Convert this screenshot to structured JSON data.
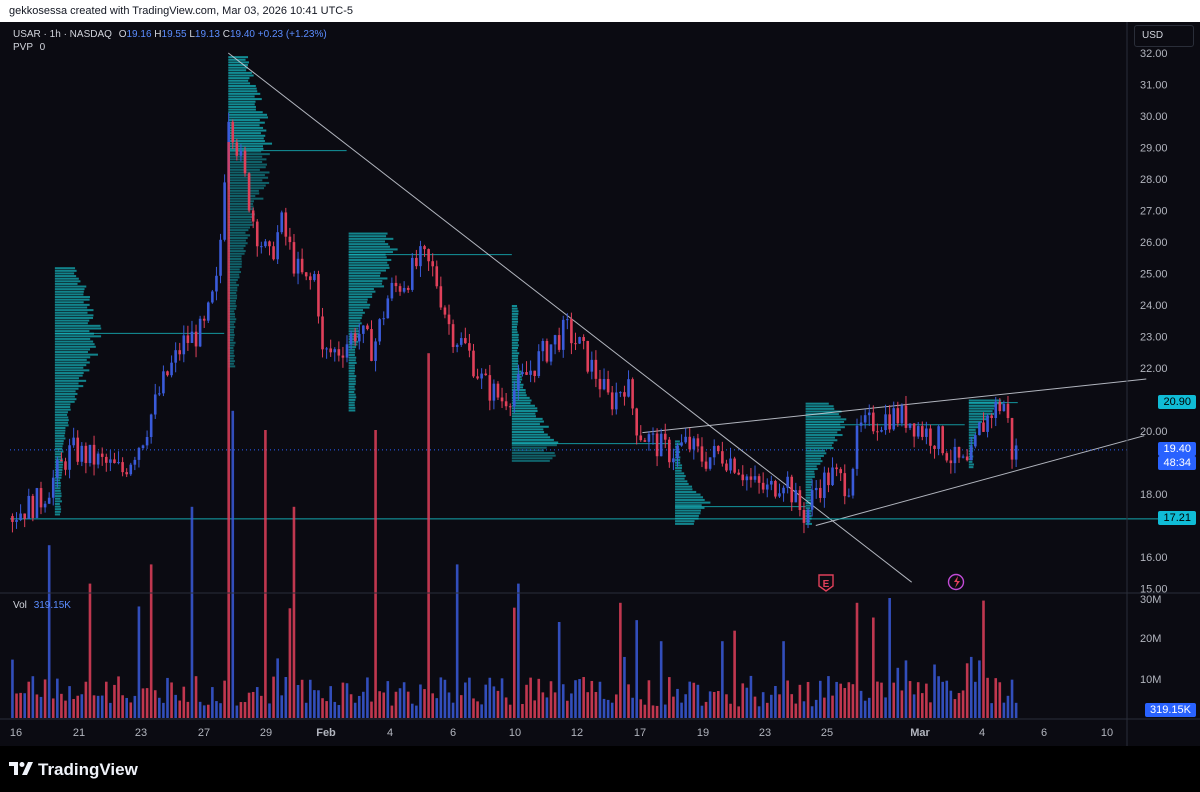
{
  "header": {
    "caption": "gekkosessa created with TradingView.com, Mar 03, 2026 10:41 UTC-5"
  },
  "legend": {
    "symbol": "USAR · 1h · NASDAQ",
    "o_label": "O",
    "o": "19.16",
    "h_label": "H",
    "h": "19.55",
    "l_label": "L",
    "l": "19.13",
    "c_label": "C",
    "c": "19.40",
    "change": "+0.23 (+1.23%)",
    "indicator": "PVP",
    "indicator_value": "0"
  },
  "volume_legend": {
    "label": "Vol",
    "value": "319.15K"
  },
  "price_scale": {
    "currency": "USD",
    "ticks": [
      "32.00",
      "31.00",
      "30.00",
      "29.00",
      "28.00",
      "27.00",
      "26.00",
      "25.00",
      "24.00",
      "23.00",
      "22.00",
      "20.00",
      "18.00",
      "16.00",
      "15.00"
    ],
    "tags": [
      {
        "text": "20.90",
        "value": 20.9,
        "color": "#10bcd6"
      },
      {
        "text": "19.40",
        "value": 19.4,
        "color": "#2962ff"
      },
      {
        "text": "48:34",
        "value": 18.95,
        "color": "#2962ff"
      },
      {
        "text": "17.21",
        "value": 17.21,
        "color": "#10bcd6"
      }
    ]
  },
  "volume_scale": {
    "ticks": [
      "30M",
      "20M",
      "10M"
    ],
    "current_tag": "319.15K"
  },
  "time_axis": [
    "16",
    "21",
    "23",
    "27",
    "29",
    "Feb",
    "4",
    "6",
    "10",
    "12",
    "17",
    "19",
    "23",
    "25",
    "Mar",
    "4",
    "6",
    "10"
  ],
  "markers": {
    "earnings_label": "E"
  },
  "brand": {
    "name": "TradingView"
  },
  "colors": {
    "up": "#3a5bd9",
    "down": "#e0405a",
    "profile": "#16b8c0",
    "background": "#0b0b12"
  },
  "chart_data": {
    "type": "candlestick",
    "title": "USAR · 1h · NASDAQ",
    "xlabel": "",
    "ylabel": "",
    "ylim": [
      15,
      32.5
    ],
    "volume_ylim": [
      0,
      30000000
    ],
    "grid": false,
    "x_ticks": [
      "16",
      "21",
      "23",
      "27",
      "29",
      "Feb",
      "4",
      "6",
      "10",
      "12",
      "17",
      "19",
      "23",
      "25",
      "Mar",
      "4",
      "6",
      "10"
    ],
    "y_ticks": [
      15,
      16,
      18,
      20,
      22,
      23,
      24,
      25,
      26,
      27,
      28,
      29,
      30,
      31,
      32
    ],
    "last_price": 19.4,
    "price_levels": [
      17.21,
      20.9
    ],
    "close_path": [
      {
        "x": 0.0,
        "y": 17.3
      },
      {
        "x": 1.5,
        "y": 17.8
      },
      {
        "x": 3.0,
        "y": 19.4
      },
      {
        "x": 4.5,
        "y": 19.0
      },
      {
        "x": 5.5,
        "y": 18.7
      },
      {
        "x": 6.5,
        "y": 19.8
      },
      {
        "x": 7.5,
        "y": 21.5
      },
      {
        "x": 8.5,
        "y": 22.8
      },
      {
        "x": 9.5,
        "y": 23.2
      },
      {
        "x": 10.2,
        "y": 24.8
      },
      {
        "x": 10.7,
        "y": 30.2
      },
      {
        "x": 11.3,
        "y": 28.6
      },
      {
        "x": 12.0,
        "y": 26.5
      },
      {
        "x": 12.7,
        "y": 25.4
      },
      {
        "x": 13.3,
        "y": 26.6
      },
      {
        "x": 14.0,
        "y": 25.2
      },
      {
        "x": 14.6,
        "y": 24.6
      },
      {
        "x": 15.0,
        "y": 25.0
      },
      {
        "x": 15.3,
        "y": 22.4
      },
      {
        "x": 16.2,
        "y": 22.6
      },
      {
        "x": 17.0,
        "y": 23.2
      },
      {
        "x": 17.8,
        "y": 22.6
      },
      {
        "x": 18.6,
        "y": 24.4
      },
      {
        "x": 19.4,
        "y": 24.8
      },
      {
        "x": 20.2,
        "y": 25.5
      },
      {
        "x": 20.8,
        "y": 25.0
      },
      {
        "x": 21.6,
        "y": 23.2
      },
      {
        "x": 22.4,
        "y": 22.6
      },
      {
        "x": 23.2,
        "y": 21.5
      },
      {
        "x": 24.1,
        "y": 21.0
      },
      {
        "x": 24.9,
        "y": 21.4
      },
      {
        "x": 25.8,
        "y": 22.2
      },
      {
        "x": 26.6,
        "y": 22.8
      },
      {
        "x": 27.3,
        "y": 23.2
      },
      {
        "x": 28.0,
        "y": 22.6
      },
      {
        "x": 28.8,
        "y": 21.7
      },
      {
        "x": 29.4,
        "y": 20.9
      },
      {
        "x": 30.2,
        "y": 21.6
      },
      {
        "x": 30.8,
        "y": 20.0
      },
      {
        "x": 31.6,
        "y": 19.6
      },
      {
        "x": 32.4,
        "y": 19.3
      },
      {
        "x": 33.2,
        "y": 19.6
      },
      {
        "x": 34.0,
        "y": 19.1
      },
      {
        "x": 34.8,
        "y": 19.3
      },
      {
        "x": 35.6,
        "y": 19.0
      },
      {
        "x": 36.4,
        "y": 18.3
      },
      {
        "x": 37.2,
        "y": 18.1
      },
      {
        "x": 38.0,
        "y": 18.6
      },
      {
        "x": 38.6,
        "y": 17.6
      },
      {
        "x": 39.0,
        "y": 17.3
      },
      {
        "x": 39.5,
        "y": 18.2
      },
      {
        "x": 40.3,
        "y": 18.6
      },
      {
        "x": 41.1,
        "y": 18.3
      },
      {
        "x": 41.6,
        "y": 20.0
      },
      {
        "x": 42.4,
        "y": 20.3
      },
      {
        "x": 43.2,
        "y": 20.5
      },
      {
        "x": 44.0,
        "y": 20.4
      },
      {
        "x": 44.8,
        "y": 20.0
      },
      {
        "x": 45.6,
        "y": 19.7
      },
      {
        "x": 46.2,
        "y": 19.1
      },
      {
        "x": 47.0,
        "y": 18.8
      },
      {
        "x": 47.5,
        "y": 20.0
      },
      {
        "x": 48.2,
        "y": 20.7
      },
      {
        "x": 48.8,
        "y": 20.9
      },
      {
        "x": 49.1,
        "y": 19.3
      },
      {
        "x": 49.4,
        "y": 19.4
      }
    ],
    "volume_peaks": [
      {
        "x": 2.0,
        "v": 9
      },
      {
        "x": 4.0,
        "v": 7
      },
      {
        "x": 7.0,
        "v": 8
      },
      {
        "x": 9.0,
        "v": 11
      },
      {
        "x": 10.7,
        "v": 30
      },
      {
        "x": 11.0,
        "v": 16
      },
      {
        "x": 12.5,
        "v": 15
      },
      {
        "x": 14.0,
        "v": 11
      },
      {
        "x": 18.0,
        "v": 15
      },
      {
        "x": 20.5,
        "v": 19
      },
      {
        "x": 22.0,
        "v": 8
      },
      {
        "x": 25.0,
        "v": 7
      },
      {
        "x": 27.0,
        "v": 5
      },
      {
        "x": 30.0,
        "v": 6
      },
      {
        "x": 32.0,
        "v": 4
      },
      {
        "x": 35.0,
        "v": 4
      },
      {
        "x": 38.0,
        "v": 4
      },
      {
        "x": 41.6,
        "v": 6
      },
      {
        "x": 44.0,
        "v": 3
      },
      {
        "x": 47.5,
        "v": 3
      }
    ],
    "trendlines": [
      {
        "label": "descending trendline",
        "x1": 10.7,
        "y1": 32.0,
        "x2": 44.2,
        "y2": 15.2
      },
      {
        "label": "upper channel",
        "x1": 31.0,
        "y1": 19.95,
        "x2": 55.7,
        "y2": 21.65
      },
      {
        "label": "lower channel",
        "x1": 39.5,
        "y1": 17.0,
        "x2": 55.6,
        "y2": 19.85
      },
      {
        "label": "level 17.21",
        "x1": 0.0,
        "y1": 17.21,
        "x2": 57.2,
        "y2": 17.21
      }
    ],
    "volume_profiles": [
      {
        "start": 2.2,
        "end": 10.5,
        "low": 17.3,
        "high": 25.2,
        "poc": 23.1,
        "max": 2.3
      },
      {
        "start": 10.7,
        "end": 16.5,
        "low": 22.0,
        "high": 31.9,
        "poc": 28.9,
        "max": 2.3
      },
      {
        "start": 16.6,
        "end": 24.6,
        "low": 20.6,
        "high": 26.3,
        "poc": 25.6,
        "max": 2.5
      },
      {
        "start": 24.6,
        "end": 32.4,
        "low": 19.0,
        "high": 24.0,
        "poc": 19.6,
        "max": 2.3
      },
      {
        "start": 32.6,
        "end": 39.0,
        "low": 17.0,
        "high": 19.7,
        "poc": 17.6,
        "max": 1.8
      },
      {
        "start": 39.0,
        "end": 46.8,
        "low": 17.0,
        "high": 20.9,
        "poc": 20.2,
        "max": 2.1
      },
      {
        "start": 47.0,
        "end": 49.4,
        "low": 18.8,
        "high": 21.0,
        "poc": 20.9,
        "max": 1.7
      }
    ]
  }
}
